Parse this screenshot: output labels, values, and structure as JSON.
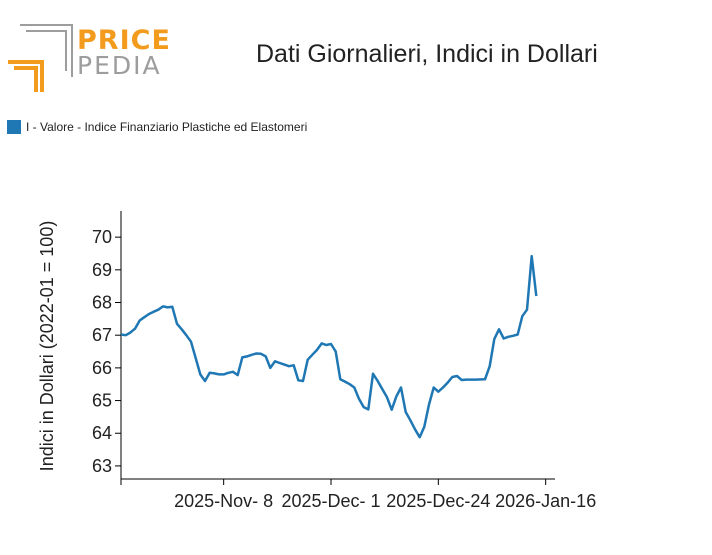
{
  "logo": {
    "line1": "PRICE",
    "line2": "PEDIA",
    "colors": {
      "orange": "#f29b1d",
      "gray": "#9d9d9d"
    }
  },
  "chart_data": {
    "type": "line",
    "title": "Dati Giornalieri, Indici in Dollari",
    "ylabel": "Indici in Dollari (2022-01 = 100)",
    "xlabel": "",
    "ylim": [
      62.6,
      70.8
    ],
    "yticks": [
      63,
      64,
      65,
      66,
      67,
      68,
      69,
      70
    ],
    "xlim": [
      "2025-10-17",
      "2026-01-18"
    ],
    "xticks": [
      {
        "date": "2025-11-08",
        "label": "2025-Nov- 8"
      },
      {
        "date": "2025-12-01",
        "label": "2025-Dec- 1"
      },
      {
        "date": "2025-12-24",
        "label": "2025-Dec-24"
      },
      {
        "date": "2026-01-16",
        "label": "2026-Jan-16"
      }
    ],
    "grid": false,
    "legend": "top-left",
    "series": [
      {
        "name": "I - Valore - Indice Finanziario Plastiche ed Elastomeri",
        "color": "#1f77b4",
        "points": [
          [
            "2025-10-17",
            67.02
          ],
          [
            "2025-10-18",
            67.0
          ],
          [
            "2025-10-19",
            67.08
          ],
          [
            "2025-10-20",
            67.2
          ],
          [
            "2025-10-21",
            67.45
          ],
          [
            "2025-10-22",
            67.55
          ],
          [
            "2025-10-23",
            67.65
          ],
          [
            "2025-10-24",
            67.72
          ],
          [
            "2025-10-25",
            67.78
          ],
          [
            "2025-10-26",
            67.88
          ],
          [
            "2025-10-27",
            67.85
          ],
          [
            "2025-10-28",
            67.87
          ],
          [
            "2025-10-29",
            67.35
          ],
          [
            "2025-10-30",
            67.18
          ],
          [
            "2025-10-31",
            67.0
          ],
          [
            "2025-11-01",
            66.8
          ],
          [
            "2025-11-02",
            66.3
          ],
          [
            "2025-11-03",
            65.8
          ],
          [
            "2025-11-04",
            65.6
          ],
          [
            "2025-11-05",
            65.85
          ],
          [
            "2025-11-06",
            65.83
          ],
          [
            "2025-11-07",
            65.8
          ],
          [
            "2025-11-08",
            65.8
          ],
          [
            "2025-11-09",
            65.85
          ],
          [
            "2025-11-10",
            65.88
          ],
          [
            "2025-11-11",
            65.78
          ],
          [
            "2025-11-12",
            66.32
          ],
          [
            "2025-11-13",
            66.35
          ],
          [
            "2025-11-14",
            66.4
          ],
          [
            "2025-11-15",
            66.44
          ],
          [
            "2025-11-16",
            66.43
          ],
          [
            "2025-11-17",
            66.35
          ],
          [
            "2025-11-18",
            66.0
          ],
          [
            "2025-11-19",
            66.2
          ],
          [
            "2025-11-20",
            66.15
          ],
          [
            "2025-11-21",
            66.1
          ],
          [
            "2025-11-22",
            66.05
          ],
          [
            "2025-11-23",
            66.08
          ],
          [
            "2025-11-24",
            65.62
          ],
          [
            "2025-11-25",
            65.6
          ],
          [
            "2025-11-26",
            66.25
          ],
          [
            "2025-11-27",
            66.4
          ],
          [
            "2025-11-28",
            66.55
          ],
          [
            "2025-11-29",
            66.75
          ],
          [
            "2025-11-30",
            66.7
          ],
          [
            "2025-12-01",
            66.73
          ],
          [
            "2025-12-02",
            66.5
          ],
          [
            "2025-12-03",
            65.65
          ],
          [
            "2025-12-04",
            65.58
          ],
          [
            "2025-12-05",
            65.5
          ],
          [
            "2025-12-06",
            65.4
          ],
          [
            "2025-12-07",
            65.05
          ],
          [
            "2025-12-08",
            64.8
          ],
          [
            "2025-12-09",
            64.73
          ],
          [
            "2025-12-10",
            65.82
          ],
          [
            "2025-12-11",
            65.6
          ],
          [
            "2025-12-12",
            65.35
          ],
          [
            "2025-12-13",
            65.1
          ],
          [
            "2025-12-14",
            64.72
          ],
          [
            "2025-12-15",
            65.12
          ],
          [
            "2025-12-16",
            65.4
          ],
          [
            "2025-12-17",
            64.65
          ],
          [
            "2025-12-18",
            64.4
          ],
          [
            "2025-12-19",
            64.12
          ],
          [
            "2025-12-20",
            63.88
          ],
          [
            "2025-12-21",
            64.2
          ],
          [
            "2025-12-22",
            64.88
          ],
          [
            "2025-12-23",
            65.4
          ],
          [
            "2025-12-24",
            65.27
          ],
          [
            "2025-12-25",
            65.4
          ],
          [
            "2025-12-26",
            65.55
          ],
          [
            "2025-12-27",
            65.72
          ],
          [
            "2025-12-28",
            65.75
          ],
          [
            "2025-12-29",
            65.63
          ],
          [
            "2025-12-30",
            65.64
          ],
          [
            "2026-01-01",
            65.64
          ],
          [
            "2026-01-03",
            65.65
          ],
          [
            "2026-01-04",
            66.05
          ],
          [
            "2026-01-05",
            66.88
          ],
          [
            "2026-01-06",
            67.18
          ],
          [
            "2026-01-07",
            66.9
          ],
          [
            "2026-01-08",
            66.95
          ],
          [
            "2026-01-09",
            66.98
          ],
          [
            "2026-01-10",
            67.02
          ],
          [
            "2026-01-11",
            67.58
          ],
          [
            "2026-01-12",
            67.78
          ],
          [
            "2026-01-13",
            69.42
          ],
          [
            "2026-01-14",
            68.2
          ]
        ]
      }
    ]
  }
}
